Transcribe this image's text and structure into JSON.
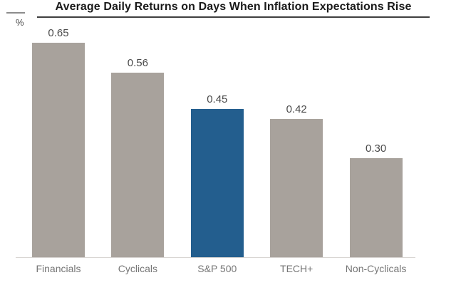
{
  "title": "Average Daily Returns on Days When Inflation Expectations Rise",
  "unit_label": "%",
  "chart_data": {
    "type": "bar",
    "title": "Average Daily Returns on Days When Inflation Expectations Rise",
    "categories": [
      "Financials",
      "Cyclicals",
      "S&P 500",
      "TECH+",
      "Non-Cyclicals"
    ],
    "values": [
      0.65,
      0.56,
      0.45,
      0.42,
      0.3
    ],
    "value_labels": [
      "0.65",
      "0.56",
      "0.45",
      "0.42",
      "0.30"
    ],
    "bar_colors": [
      "#a8a29c",
      "#a8a29c",
      "#235e8e",
      "#a8a29c",
      "#a8a29c"
    ],
    "highlight_category": "S&P 500",
    "highlight_color": "#235e8e",
    "default_color": "#a8a29c",
    "xlabel": "",
    "ylabel": "%",
    "ylim": [
      0,
      0.78
    ],
    "grid": false,
    "legend": false,
    "value_label_color": "#4a4a4a",
    "category_label_color": "#757575",
    "baseline_color": "#d8d5d2"
  }
}
